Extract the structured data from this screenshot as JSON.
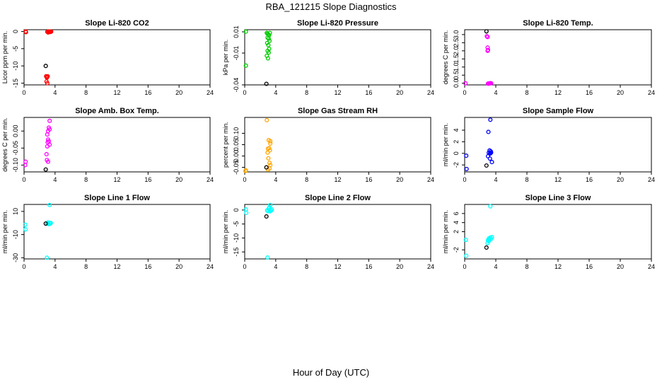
{
  "figure": {
    "title": "RBA_121215  Slope Diagnostics",
    "xlabel": "Hour of Day (UTC)"
  },
  "chart_data": [
    {
      "type": "scatter",
      "title": "Slope Li-820 CO2",
      "ylabel": "Licor ppm per min.",
      "color": "#ff0000",
      "xlim": [
        0,
        24
      ],
      "ylim": [
        -15.5,
        0.5
      ],
      "xticks": [
        0,
        4,
        8,
        12,
        16,
        20,
        24
      ],
      "yticks": [
        0,
        -5,
        -10,
        -15
      ],
      "ytick_labels": [
        "0",
        "-5",
        "-10",
        "-15"
      ],
      "points": [
        [
          0.2,
          0
        ],
        [
          0.25,
          -0.2
        ],
        [
          3.0,
          -0.1
        ],
        [
          3.1,
          -0.3
        ],
        [
          3.15,
          0
        ],
        [
          3.2,
          -0.2
        ],
        [
          3.3,
          -0.1
        ],
        [
          3.35,
          0
        ],
        [
          3.4,
          -0.15
        ],
        [
          3.5,
          -0.05
        ],
        [
          2.85,
          -13.0
        ],
        [
          2.95,
          -13.2
        ],
        [
          3.05,
          -13.0
        ],
        [
          2.9,
          -14.5
        ],
        [
          3.0,
          -15.0
        ],
        [
          2.95,
          -13.4
        ]
      ],
      "last_point": [
        2.8,
        -10.0
      ]
    },
    {
      "type": "scatter",
      "title": "Slope Li-820 Pressure",
      "ylabel": "kPa per min.",
      "color": "#00cc00",
      "xlim": [
        0,
        24
      ],
      "ylim": [
        -0.04,
        0.012
      ],
      "xticks": [
        0,
        4,
        8,
        12,
        16,
        20,
        24
      ],
      "yticks": [
        0.01,
        -0.01,
        -0.04
      ],
      "ytick_labels": [
        "0.01",
        "-0.01",
        "-0.04"
      ],
      "points": [
        [
          0.15,
          0.0102
        ],
        [
          0.15,
          -0.0218
        ],
        [
          2.85,
          0.009
        ],
        [
          2.95,
          0.0082
        ],
        [
          3.05,
          0.0075
        ],
        [
          3.15,
          0.0068
        ],
        [
          3.25,
          0.009
        ],
        [
          2.95,
          0.0045
        ],
        [
          3.1,
          0.0035
        ],
        [
          3.2,
          0.0015
        ],
        [
          2.9,
          -0.0005
        ],
        [
          3.05,
          -0.0025
        ],
        [
          3.15,
          -0.006
        ],
        [
          2.95,
          -0.008
        ],
        [
          3.1,
          -0.0095
        ],
        [
          2.85,
          -0.0125
        ],
        [
          3.0,
          -0.015
        ]
      ],
      "last_point": [
        2.8,
        -0.039
      ]
    },
    {
      "type": "scatter",
      "title": "Slope Li-820 Temp.",
      "ylabel": "degrees C per min.",
      "color": "#ff00ff",
      "xlim": [
        0,
        24
      ],
      "ylim": [
        -0.1,
        3.3
      ],
      "xticks": [
        0,
        4,
        8,
        12,
        16,
        20,
        24
      ],
      "yticks": [
        0.0,
        0.5,
        1.0,
        1.5,
        2.0,
        2.5,
        3.0
      ],
      "ytick_labels": [
        "0.0",
        "0.5",
        "1.0",
        "1.5",
        "2.0",
        "2.5",
        "3.0"
      ],
      "points": [
        [
          0.1,
          0
        ],
        [
          2.85,
          2.9
        ],
        [
          2.95,
          2.85
        ],
        [
          3.0,
          2.05
        ],
        [
          2.95,
          2.0
        ],
        [
          2.95,
          2.2
        ],
        [
          3.0,
          -0.02
        ],
        [
          3.1,
          -0.02
        ],
        [
          3.2,
          0
        ],
        [
          3.3,
          0
        ],
        [
          3.4,
          0
        ]
      ],
      "last_point": [
        2.8,
        3.2
      ]
    },
    {
      "type": "scatter",
      "title": "Slope Amb. Box Temp.",
      "ylabel": "degrees C per min.",
      "color": "#ff00ff",
      "xlim": [
        0,
        24
      ],
      "ylim": [
        -0.12,
        0.04
      ],
      "xticks": [
        0,
        4,
        8,
        12,
        16,
        20,
        24
      ],
      "yticks": [
        0.0,
        -0.05,
        -0.1
      ],
      "ytick_labels": [
        "0.00",
        "-0.05",
        "-0.10"
      ],
      "points": [
        [
          0.15,
          -0.1
        ],
        [
          0.2,
          -0.09
        ],
        [
          3.3,
          0.03
        ],
        [
          3.2,
          0.01
        ],
        [
          3.3,
          0.005
        ],
        [
          3.1,
          0.0
        ],
        [
          3.0,
          -0.01
        ],
        [
          3.1,
          -0.025
        ],
        [
          3.2,
          -0.03
        ],
        [
          3.05,
          -0.033
        ],
        [
          3.3,
          -0.04
        ],
        [
          3.0,
          -0.045
        ],
        [
          2.95,
          -0.085
        ],
        [
          3.1,
          -0.09
        ],
        [
          2.9,
          -0.068
        ]
      ],
      "last_point": [
        2.8,
        -0.113
      ]
    },
    {
      "type": "scatter",
      "title": "Slope Gas Stream RH",
      "ylabel": "percent per min.",
      "color": "#ffa500",
      "xlim": [
        0,
        24
      ],
      "ylim": [
        -0.07,
        0.17
      ],
      "xticks": [
        0,
        4,
        8,
        12,
        16,
        20,
        24
      ],
      "yticks": [
        0.1,
        0.05,
        0.0,
        -0.05
      ],
      "ytick_labels": [
        "0.10",
        "0.05",
        "0.00",
        "-0.05"
      ],
      "points": [
        [
          0.1,
          -0.066
        ],
        [
          0.15,
          -0.063
        ],
        [
          2.85,
          0.158
        ],
        [
          3.1,
          0.07
        ],
        [
          3.3,
          0.065
        ],
        [
          3.3,
          0.055
        ],
        [
          3.15,
          0.035
        ],
        [
          3.0,
          0.032
        ],
        [
          3.25,
          0.025
        ],
        [
          2.95,
          0.015
        ],
        [
          3.05,
          -0.01
        ],
        [
          3.2,
          -0.03
        ],
        [
          3.3,
          -0.04
        ],
        [
          3.2,
          -0.055
        ],
        [
          3.0,
          -0.06
        ]
      ],
      "last_point": [
        2.8,
        -0.05
      ]
    },
    {
      "type": "scatter",
      "title": "Slope Sample Flow",
      "ylabel": "ml/min per min.",
      "color": "#0000ff",
      "xlim": [
        0,
        24
      ],
      "ylim": [
        -3.2,
        6.2
      ],
      "xticks": [
        0,
        4,
        8,
        12,
        16,
        20,
        24
      ],
      "yticks": [
        -2,
        0,
        2,
        4
      ],
      "ytick_labels": [
        "-2",
        "0",
        "2",
        "4"
      ],
      "points": [
        [
          0.2,
          -0.4
        ],
        [
          0.25,
          -2.7
        ],
        [
          3.3,
          5.8
        ],
        [
          3.05,
          3.7
        ],
        [
          3.2,
          0.5
        ],
        [
          3.35,
          0.35
        ],
        [
          3.1,
          0.1
        ],
        [
          3.4,
          0.15
        ],
        [
          3.25,
          -0.05
        ],
        [
          3.35,
          0.05
        ],
        [
          3.0,
          -0.5
        ],
        [
          3.25,
          -0.9
        ],
        [
          3.5,
          -1.5
        ]
      ],
      "last_point": [
        2.8,
        -2.1
      ]
    },
    {
      "type": "scatter",
      "title": "Slope Line 1 Flow",
      "ylabel": "ml/min per min.",
      "color": "#00ffff",
      "xlim": [
        0,
        24
      ],
      "ylim": [
        -31,
        16
      ],
      "xticks": [
        0,
        4,
        8,
        12,
        16,
        20,
        24
      ],
      "yticks": [
        10,
        -10,
        -30
      ],
      "ytick_labels": [
        "10",
        "-10",
        "-30"
      ],
      "points": [
        [
          0.15,
          -1.5
        ],
        [
          0.2,
          -5.5
        ],
        [
          3.3,
          15.5
        ],
        [
          3.0,
          -0.5
        ],
        [
          3.1,
          0.5
        ],
        [
          3.3,
          0
        ],
        [
          3.4,
          -0.5
        ],
        [
          3.45,
          0
        ],
        [
          3.2,
          -1.0
        ],
        [
          3.1,
          -0.3
        ],
        [
          2.95,
          -30.0
        ]
      ],
      "last_point": [
        2.8,
        -0.5
      ]
    },
    {
      "type": "scatter",
      "title": "Slope Line 2 Flow",
      "ylabel": "ml/min per min.",
      "color": "#00ffff",
      "xlim": [
        0,
        24
      ],
      "ylim": [
        -17.5,
        2.0
      ],
      "xticks": [
        0,
        4,
        8,
        12,
        16,
        20,
        24
      ],
      "yticks": [
        0,
        -5,
        -10,
        -15
      ],
      "ytick_labels": [
        "0",
        "-5",
        "-10",
        "-15"
      ],
      "points": [
        [
          0.15,
          0.2
        ],
        [
          0.2,
          -1.0
        ],
        [
          3.3,
          1.8
        ],
        [
          3.2,
          1.0
        ],
        [
          3.1,
          0.5
        ],
        [
          3.3,
          0.1
        ],
        [
          3.4,
          -0.2
        ],
        [
          3.5,
          0.2
        ],
        [
          3.0,
          -0.4
        ],
        [
          3.25,
          -0.5
        ],
        [
          2.9,
          -0.1
        ],
        [
          2.95,
          -17.0
        ]
      ],
      "last_point": [
        2.8,
        -2.3
      ]
    },
    {
      "type": "scatter",
      "title": "Slope Line 3 Flow",
      "ylabel": "ml/min per min.",
      "color": "#00ffff",
      "xlim": [
        0,
        24
      ],
      "ylim": [
        -4.0,
        8.0
      ],
      "xticks": [
        0,
        4,
        8,
        12,
        16,
        20,
        24
      ],
      "yticks": [
        -2,
        2,
        4,
        6
      ],
      "ytick_labels": [
        "-2",
        "2",
        "4",
        "6"
      ],
      "points": [
        [
          0.15,
          0.2
        ],
        [
          0.2,
          -3.3
        ],
        [
          3.3,
          7.6
        ],
        [
          3.5,
          0.8
        ],
        [
          3.3,
          0.7
        ],
        [
          3.1,
          0.5
        ],
        [
          3.2,
          0.3
        ],
        [
          3.4,
          0.4
        ],
        [
          3.0,
          0.1
        ],
        [
          3.1,
          -0.1
        ],
        [
          2.95,
          -0.5
        ]
      ],
      "last_point": [
        2.8,
        -1.5
      ]
    }
  ]
}
